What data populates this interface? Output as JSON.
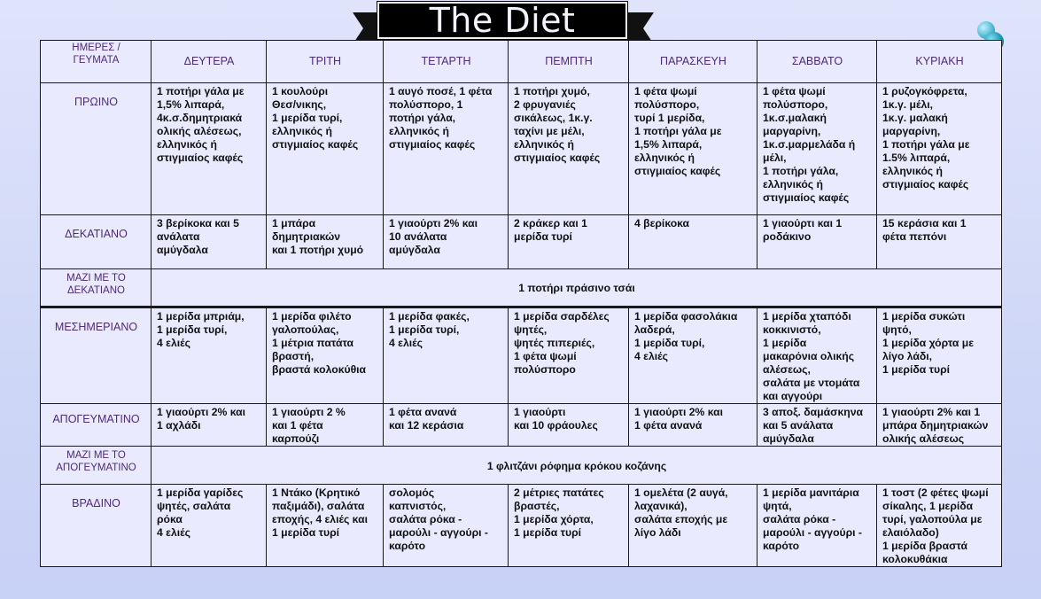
{
  "title": "The Diet",
  "header": {
    "corner": "ΗΜΕΡΕΣ /\nΓΕΥΜΑΤΑ",
    "days": [
      "ΔΕΥΤΕΡΑ",
      "ΤΡΙΤΗ",
      "ΤΕΤΑΡΤΗ",
      "ΠΕΜΠΤΗ",
      "ΠΑΡΑΣΚΕΥΗ",
      "ΣΑΒΒΑΤΟ",
      "ΚΥΡΙΑΚΗ"
    ]
  },
  "rows": {
    "breakfast": {
      "label": "ΠΡΩΙΝΟ",
      "cells": [
        "1 ποτήρι γάλα με\n1,5% λιπαρά,\n4κ.σ.δημητριακά\nολικής αλέσεως,\nελληνικός ή\nστιγμιαίος καφές",
        "1 κουλούρι\nΘεσ/νικης,\n1 μερίδα τυρί,\nελληνικός ή\nστιγμιαίος καφές",
        "1 αυγό ποσέ, 1 φέτα\nπολύσπορο, 1\nποτήρι γάλα,\nελληνικός ή\nστιγμιαίος καφές",
        "1 ποτήρι χυμό,\n2 φρυγανιές\nσικάλεως, 1κ.γ.\nταχίνι με μέλι,\nελληνικός ή\nστιγμιαίος καφές",
        "1 φέτα ψωμί\nπολύσπορο,\nτυρί 1 μερίδα,\n1 ποτήρι γάλα με\n1,5% λιπαρά,\nελληνικός ή\nστιγμιαίος καφές",
        " 1 φέτα ψωμί\nπολύσπορο,\n1κ.σ.μαλακή\nμαργαρίνη,\n1κ.σ.μαρμελάδα ή\nμέλι,\n1 ποτήρι γάλα,\nελληνικός ή\nστιγμιαίος καφές",
        "1 ρυζογκόφρετα,\n1κ.γ. μέλι,\n1κ.γ. μαλακή\nμαργαρίνη,\n1 ποτήρι γάλα με\n1.5% λιπαρά,\nελληνικός ή\nστιγμιαίος καφές"
      ]
    },
    "snack1": {
      "label": "ΔΕΚΑΤΙΑΝΟ",
      "cells": [
        "3 βερίκοκα και 5\nανάλατα\nαμύγδαλα",
        "1 μπάρα\nδημητριακών\nκαι 1 ποτήρι χυμό",
        "1 γιαούρτι 2%  και\n10 ανάλατα\nαμύγδαλα",
        "2 κράκερ και 1\nμερίδα τυρί",
        "4 βερίκοκα",
        "1 γιαούρτι και 1\nροδάκινο",
        "15 κεράσια και 1\nφέτα πεπόνι"
      ]
    },
    "with_snack1": {
      "label": "ΜΑΖΙ ΜΕ ΤΟ\nΔΕΚΑΤΙΑΝΟ",
      "text": "1 ποτήρι πράσινο τσάι"
    },
    "lunch": {
      "label": "ΜΕΣΗΜΕΡΙΑΝΟ",
      "cells": [
        "1 μερίδα μπριάμ,\n1 μερίδα τυρί,\n4 ελιές",
        "1 μερίδα φιλέτο\nγαλοπούλας,\n1 μέτρια πατάτα\nβραστή,\nβραστά κολοκύθια",
        "1 μερίδα φακές,\n1 μερίδα τυρί,\n4 ελιές",
        "1 μερίδα σαρδέλες\nψητές,\nψητές πιπεριές,\n1 φέτα ψωμί\nπολύσπορο",
        " 1 μερίδα φασολάκια\nλαδερά,\n1 μερίδα τυρί,\n4 ελιές",
        "1 μερίδα χταπόδι\nκοκκινιστό,\n1 μερίδα\nμακαρόνια ολικής\nαλέσεως,\nσαλάτα με ντομάτα\nκαι αγγούρι",
        "1 μερίδα συκώτι\nψητό,\n1 μερίδα χόρτα με\nλίγο λάδι,\n1 μερίδα τυρί"
      ]
    },
    "snack2": {
      "label": "ΑΠΟΓΕΥΜΑΤΙΝΟ",
      "cells": [
        "1 γιαούρτι 2%  και\n1 αχλάδι",
        "1 γιαούρτι 2 %\nκαι 1 φέτα\nκαρπούζι",
        "1 φέτα ανανά\nκαι 12 κεράσια",
        "1 γιαούρτι\nκαι 10 φράουλες",
        "1 γιαούρτι 2% και\n1 φέτα ανανά",
        "3 αποξ. δαμάσκηνα\nκαι 5 ανάλατα\nαμύγδαλα",
        "1 γιαούρτι 2% και 1\nμπάρα δημητριακών\nολικής αλέσεως"
      ]
    },
    "with_snack2": {
      "label": "ΜΑΖΙ ΜΕ ΤΟ\nΑΠΟΓΕΥΜΑΤΙΝΟ",
      "text": "1 φλιτζάνι ρόφημα κρόκου κοζάνης"
    },
    "dinner": {
      "label": "ΒΡΑΔΙΝΟ",
      "cells": [
        "1 μερίδα γαρίδες\nψητές, σαλάτα\nρόκα\n4 ελιές",
        "1 Ντάκο (Κρητικό\nπαξιμάδι), σαλάτα\nεποχής, 4 ελιές και\n1 μερίδα τυρί",
        "σολομός\nκαπνιστός,\nσαλάτα ρόκα -\nμαρούλι - αγγούρι -\nκαρότο",
        "2 μέτριες πατάτες\nβραστές,\n1 μερίδα χόρτα,\n1 μερίδα τυρί",
        "1 ομελέτα (2 αυγά,\nλαχανικά),\nσαλάτα εποχής με\nλίγο λάδι",
        "1 μερίδα μανιτάρια\nψητά,\nσαλάτα ρόκα -\nμαρούλι - αγγούρι -\nκαρότο",
        "1 τοστ (2 φέτες ψωμί\nσίκαλης, 1 μερίδα\nτυρί, γαλοπούλα με\nελαιόλαδο)\n1 μερίδα βραστά\nκολοκυθάκια"
      ]
    }
  }
}
